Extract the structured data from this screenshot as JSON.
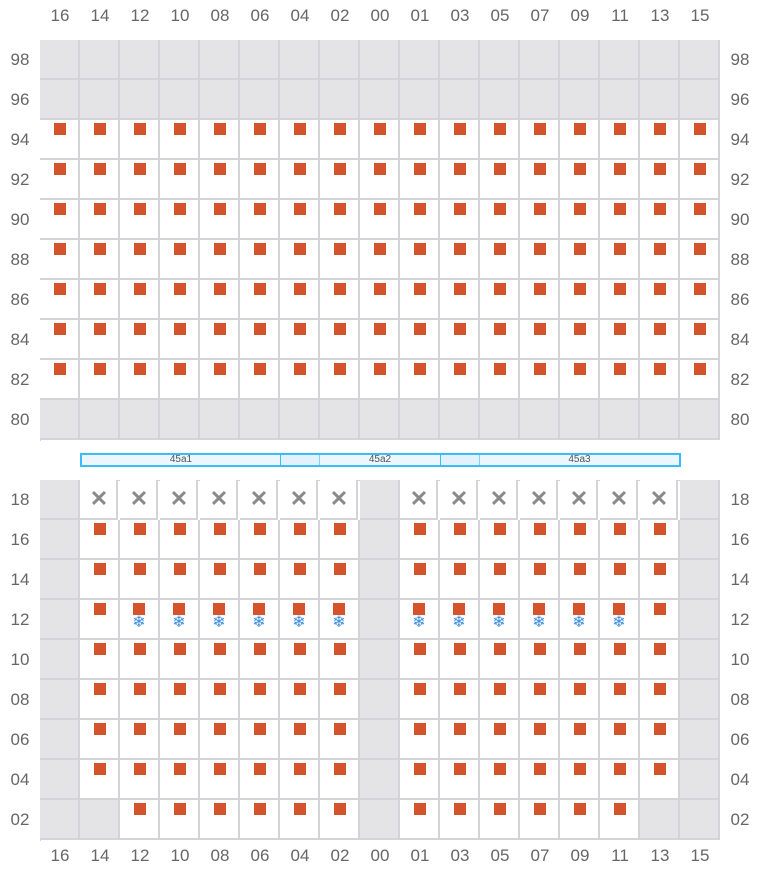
{
  "columns": [
    "16",
    "14",
    "12",
    "10",
    "08",
    "06",
    "04",
    "02",
    "00",
    "01",
    "03",
    "05",
    "07",
    "09",
    "11",
    "13",
    "15"
  ],
  "colors": {
    "seat": "#d4532a",
    "unavailable": "#e4e4e7",
    "snowflake": "#3b8fdd",
    "bar": "#38bdf8"
  },
  "legend_codes": {
    "g": "unavailable",
    "s": "seat",
    "x": "blocked-x",
    "f": "seat-with-snowflake",
    "e": "empty"
  },
  "top_section": {
    "rows": [
      {
        "label": "98",
        "cells": "ggggggggggggggggg"
      },
      {
        "label": "96",
        "cells": "ggggggggggggggggg"
      },
      {
        "label": "94",
        "cells": "sssssssssssssssss"
      },
      {
        "label": "92",
        "cells": "sssssssssssssssss"
      },
      {
        "label": "90",
        "cells": "sssssssssssssssss"
      },
      {
        "label": "88",
        "cells": "sssssssssssssssss"
      },
      {
        "label": "86",
        "cells": "sssssssssssssssss"
      },
      {
        "label": "84",
        "cells": "sssssssssssssssss"
      },
      {
        "label": "82",
        "cells": "sssssssssssssssss"
      },
      {
        "label": "80",
        "cells": "ggggggggggggggggg"
      }
    ]
  },
  "zones": [
    {
      "label": "45a1"
    },
    {
      "label": "45a2"
    },
    {
      "label": "45a3"
    }
  ],
  "bottom_section": {
    "rows": [
      {
        "label": "18",
        "cells": "gxxxxxxxgxxxxxxxg"
      },
      {
        "label": "16",
        "cells": "gsssssssgsssssssg"
      },
      {
        "label": "14",
        "cells": "gsssssssgsssssssg"
      },
      {
        "label": "12",
        "cells": "gsffffffgffffffsg"
      },
      {
        "label": "10",
        "cells": "gsssssssgsssssssg"
      },
      {
        "label": "08",
        "cells": "gsssssssgsssssssg"
      },
      {
        "label": "06",
        "cells": "gsssssssgsssssssg"
      },
      {
        "label": "04",
        "cells": "gsssssssgsssssssg"
      },
      {
        "label": "02",
        "cells": "ggssssssgssssssgg"
      }
    ]
  }
}
